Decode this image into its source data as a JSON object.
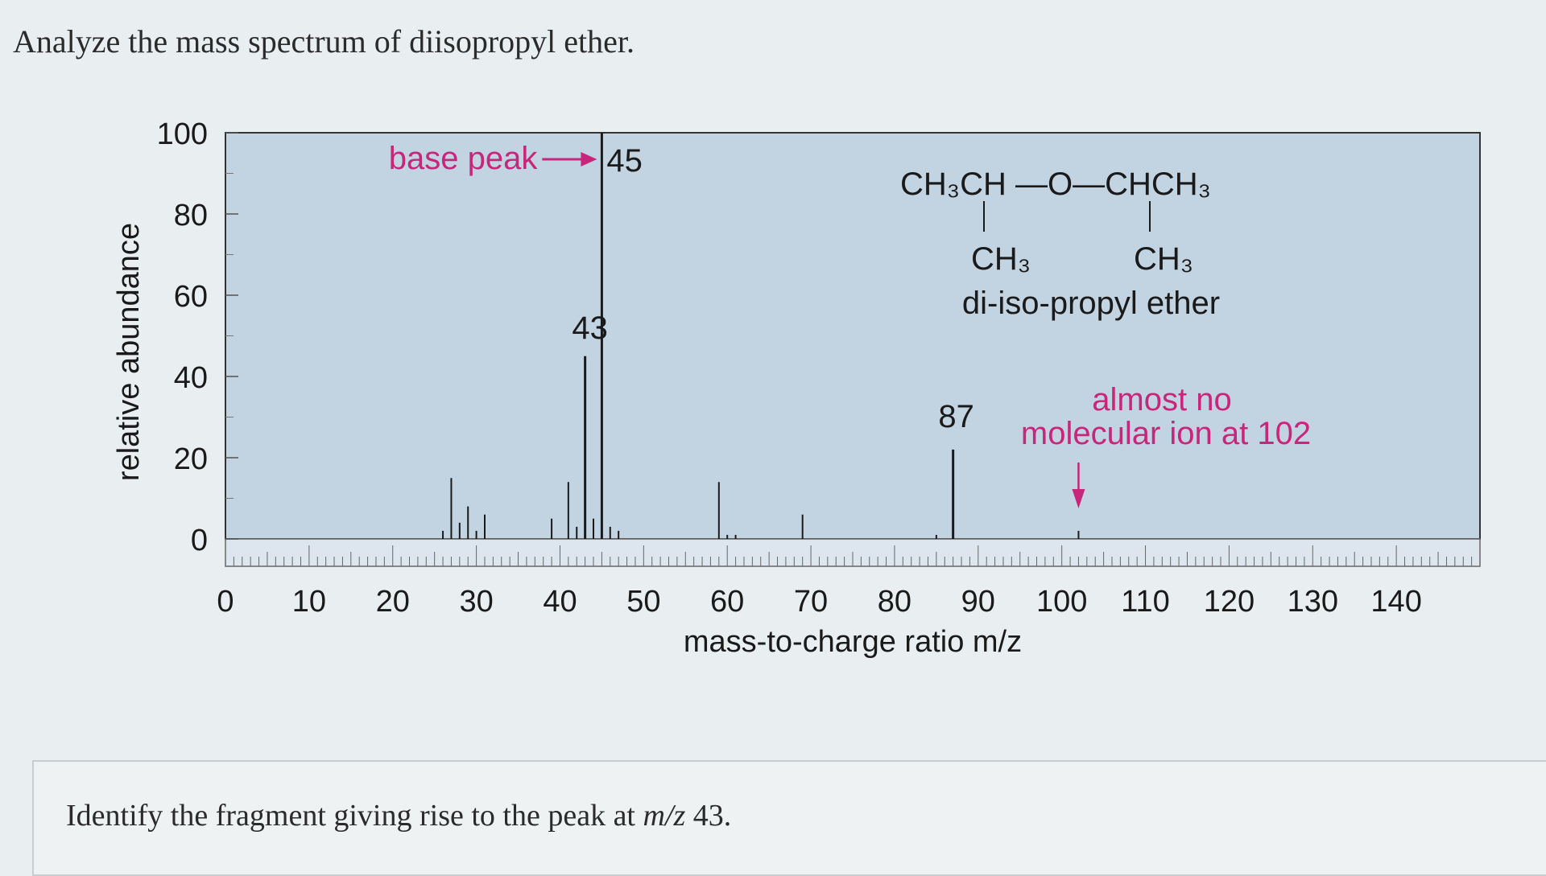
{
  "question": {
    "title": "Analyze the mass spectrum of diisopropyl ether.",
    "prompt_before": "Identify the fragment giving rise to the peak at ",
    "prompt_italic": "m/z",
    "prompt_after": " 43."
  },
  "chart_data": {
    "type": "bar",
    "xlabel": "mass-to-charge ratio m/z",
    "ylabel": "relative abundance",
    "xlim": [
      0,
      150
    ],
    "ylim": [
      0,
      100
    ],
    "xticks": [
      0,
      10,
      20,
      30,
      40,
      50,
      60,
      70,
      80,
      90,
      100,
      110,
      120,
      130,
      140
    ],
    "yticks": [
      0,
      20,
      40,
      60,
      80,
      100
    ],
    "peaks": [
      {
        "x": 26,
        "y": 2
      },
      {
        "x": 27,
        "y": 15
      },
      {
        "x": 28,
        "y": 4
      },
      {
        "x": 29,
        "y": 8
      },
      {
        "x": 30,
        "y": 2
      },
      {
        "x": 31,
        "y": 6
      },
      {
        "x": 39,
        "y": 5
      },
      {
        "x": 41,
        "y": 14
      },
      {
        "x": 42,
        "y": 3
      },
      {
        "x": 43,
        "y": 45
      },
      {
        "x": 44,
        "y": 5
      },
      {
        "x": 45,
        "y": 100
      },
      {
        "x": 46,
        "y": 3
      },
      {
        "x": 47,
        "y": 2
      },
      {
        "x": 59,
        "y": 14
      },
      {
        "x": 60,
        "y": 1
      },
      {
        "x": 61,
        "y": 1
      },
      {
        "x": 69,
        "y": 6
      },
      {
        "x": 85,
        "y": 1
      },
      {
        "x": 87,
        "y": 22
      },
      {
        "x": 102,
        "y": 2
      }
    ],
    "annotations": {
      "base_peak_label": "base peak",
      "base_peak_value": "45",
      "peak_43_label": "43",
      "peak_87_label": "87",
      "molecular_ion_note_line1": "almost no",
      "molecular_ion_note_line2": "molecular ion at 102",
      "structure_line1": "CH₃CH —O—CHCH₃",
      "structure_ch3_left": "CH₃",
      "structure_ch3_right": "CH₃",
      "compound_name": "di-iso-propyl ether"
    },
    "colors": {
      "plot_background": "#c2d3e2",
      "accent": "#c8267b",
      "ink": "#1a1a1a"
    }
  }
}
